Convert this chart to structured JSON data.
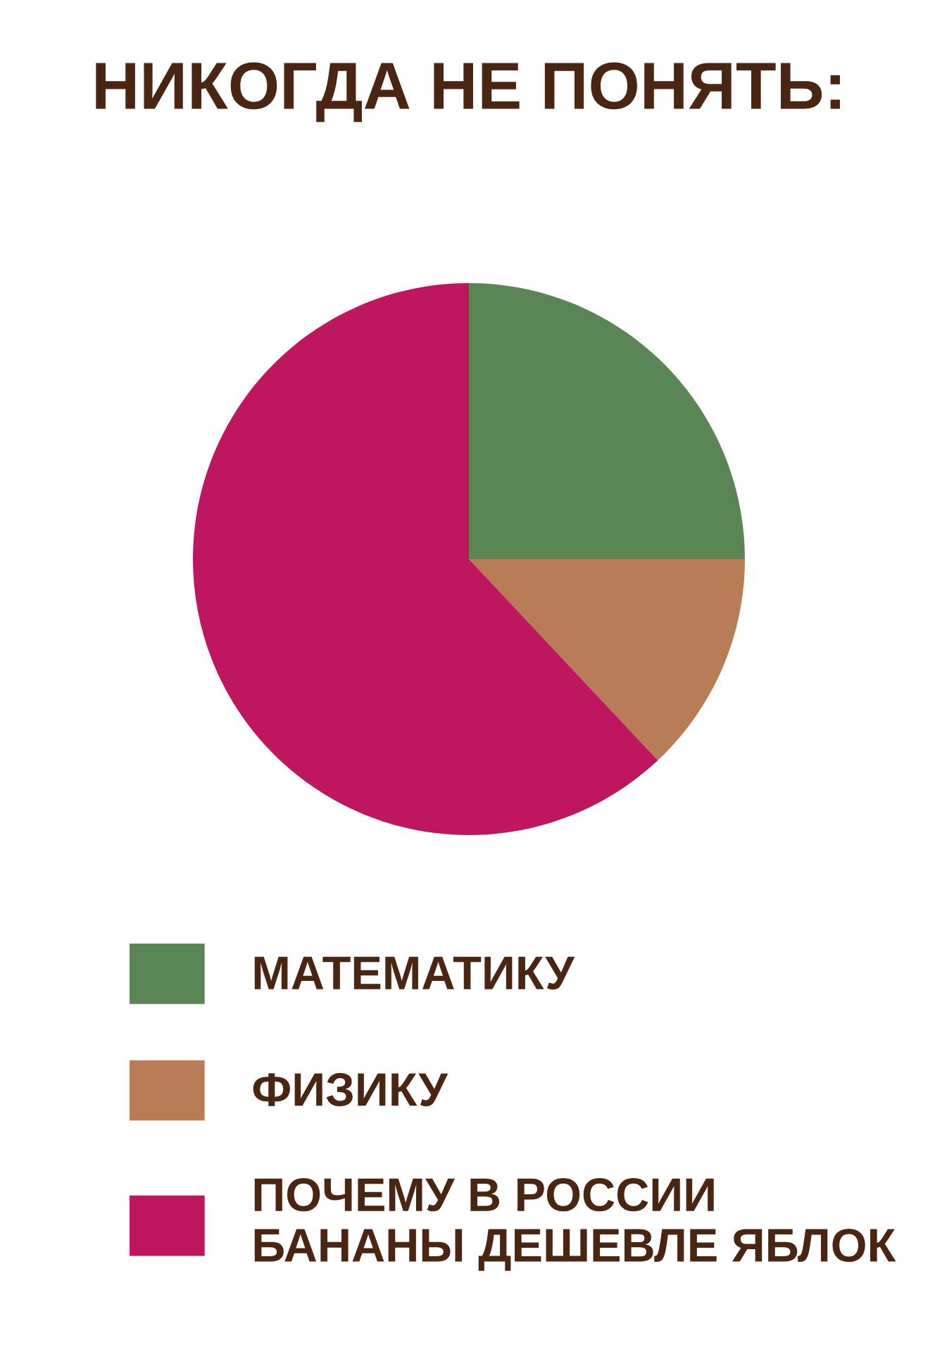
{
  "chart_data": {
    "type": "pie",
    "title": "НИКОГДА НЕ ПОНЯТЬ:",
    "categories": [
      "МАТЕМАТИКУ",
      "ФИЗИКУ",
      "ПОЧЕМУ В РОССИИ\nБАНАНЫ ДЕШЕВЛЕ ЯБЛОК"
    ],
    "values": [
      25,
      13,
      62
    ],
    "colors": [
      "#5a8656",
      "#b87d57",
      "#bf1660"
    ],
    "legend": "bottom"
  }
}
